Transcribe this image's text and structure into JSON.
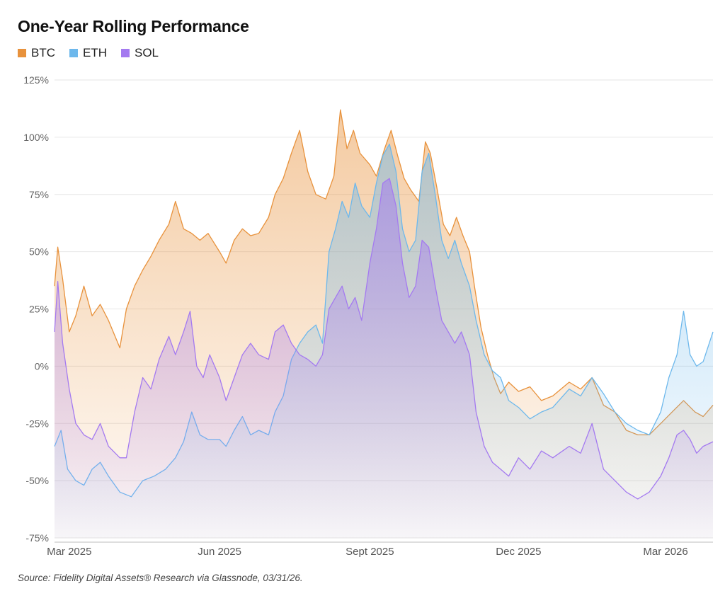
{
  "chart_data": {
    "type": "area",
    "title": "One-Year Rolling Performance",
    "xlabel": "",
    "ylabel": "",
    "ylim": [
      -75,
      125
    ],
    "y_ticks": [
      125,
      100,
      75,
      50,
      25,
      0,
      -25,
      -50,
      -75
    ],
    "y_tick_labels": [
      "125%",
      "100%",
      "75%",
      "50%",
      "25%",
      "0%",
      "-25%",
      "-50%",
      "-75%"
    ],
    "x_range": [
      "2025-02-20",
      "2026-03-30"
    ],
    "x_ticks": [
      {
        "date": "2025-03-01",
        "label": "Mar 2025"
      },
      {
        "date": "2025-06-01",
        "label": "Jun 2025"
      },
      {
        "date": "2025-09-01",
        "label": "Sept 2025"
      },
      {
        "date": "2025-12-01",
        "label": "Dec 2025"
      },
      {
        "date": "2026-03-01",
        "label": "Mar 2026"
      }
    ],
    "grid": true,
    "legend_position": "top-left",
    "series": [
      {
        "name": "BTC",
        "color": "#E8923C",
        "points": [
          [
            "2025-02-20",
            35
          ],
          [
            "2025-02-22",
            52
          ],
          [
            "2025-02-25",
            38
          ],
          [
            "2025-03-01",
            15
          ],
          [
            "2025-03-05",
            22
          ],
          [
            "2025-03-10",
            35
          ],
          [
            "2025-03-15",
            22
          ],
          [
            "2025-03-20",
            27
          ],
          [
            "2025-03-25",
            20
          ],
          [
            "2025-04-01",
            8
          ],
          [
            "2025-04-05",
            25
          ],
          [
            "2025-04-10",
            35
          ],
          [
            "2025-04-15",
            42
          ],
          [
            "2025-04-20",
            48
          ],
          [
            "2025-04-25",
            55
          ],
          [
            "2025-05-01",
            62
          ],
          [
            "2025-05-05",
            72
          ],
          [
            "2025-05-10",
            60
          ],
          [
            "2025-05-15",
            58
          ],
          [
            "2025-05-20",
            55
          ],
          [
            "2025-05-25",
            58
          ],
          [
            "2025-06-01",
            50
          ],
          [
            "2025-06-05",
            45
          ],
          [
            "2025-06-10",
            55
          ],
          [
            "2025-06-15",
            60
          ],
          [
            "2025-06-20",
            57
          ],
          [
            "2025-06-25",
            58
          ],
          [
            "2025-07-01",
            65
          ],
          [
            "2025-07-05",
            75
          ],
          [
            "2025-07-10",
            82
          ],
          [
            "2025-07-15",
            93
          ],
          [
            "2025-07-20",
            103
          ],
          [
            "2025-07-25",
            85
          ],
          [
            "2025-07-30",
            75
          ],
          [
            "2025-08-05",
            73
          ],
          [
            "2025-08-10",
            83
          ],
          [
            "2025-08-14",
            112
          ],
          [
            "2025-08-18",
            95
          ],
          [
            "2025-08-22",
            103
          ],
          [
            "2025-08-26",
            93
          ],
          [
            "2025-09-01",
            88
          ],
          [
            "2025-09-05",
            83
          ],
          [
            "2025-09-10",
            95
          ],
          [
            "2025-09-14",
            103
          ],
          [
            "2025-09-18",
            92
          ],
          [
            "2025-09-22",
            82
          ],
          [
            "2025-09-26",
            77
          ],
          [
            "2025-10-01",
            72
          ],
          [
            "2025-10-05",
            98
          ],
          [
            "2025-10-08",
            93
          ],
          [
            "2025-10-12",
            78
          ],
          [
            "2025-10-16",
            62
          ],
          [
            "2025-10-20",
            57
          ],
          [
            "2025-10-24",
            65
          ],
          [
            "2025-10-28",
            57
          ],
          [
            "2025-11-01",
            50
          ],
          [
            "2025-11-04",
            35
          ],
          [
            "2025-11-08",
            17
          ],
          [
            "2025-11-12",
            5
          ],
          [
            "2025-11-16",
            -5
          ],
          [
            "2025-11-20",
            -12
          ],
          [
            "2025-11-25",
            -7
          ],
          [
            "2025-12-01",
            -11
          ],
          [
            "2025-12-08",
            -9
          ],
          [
            "2025-12-15",
            -15
          ],
          [
            "2025-12-22",
            -13
          ],
          [
            "2026-01-01",
            -7
          ],
          [
            "2026-01-08",
            -10
          ],
          [
            "2026-01-15",
            -5
          ],
          [
            "2026-01-22",
            -17
          ],
          [
            "2026-01-29",
            -20
          ],
          [
            "2026-02-05",
            -28
          ],
          [
            "2026-02-12",
            -30
          ],
          [
            "2026-02-19",
            -30
          ],
          [
            "2026-02-26",
            -25
          ],
          [
            "2026-03-05",
            -20
          ],
          [
            "2026-03-12",
            -15
          ],
          [
            "2026-03-19",
            -20
          ],
          [
            "2026-03-24",
            -22
          ],
          [
            "2026-03-30",
            -17
          ]
        ]
      },
      {
        "name": "ETH",
        "color": "#6DB8EC",
        "points": [
          [
            "2025-02-20",
            -35
          ],
          [
            "2025-02-24",
            -28
          ],
          [
            "2025-02-28",
            -45
          ],
          [
            "2025-03-05",
            -50
          ],
          [
            "2025-03-10",
            -52
          ],
          [
            "2025-03-15",
            -45
          ],
          [
            "2025-03-20",
            -42
          ],
          [
            "2025-03-25",
            -48
          ],
          [
            "2025-04-01",
            -55
          ],
          [
            "2025-04-08",
            -57
          ],
          [
            "2025-04-15",
            -50
          ],
          [
            "2025-04-22",
            -48
          ],
          [
            "2025-04-29",
            -45
          ],
          [
            "2025-05-05",
            -40
          ],
          [
            "2025-05-10",
            -33
          ],
          [
            "2025-05-15",
            -20
          ],
          [
            "2025-05-20",
            -30
          ],
          [
            "2025-05-25",
            -32
          ],
          [
            "2025-06-01",
            -32
          ],
          [
            "2025-06-05",
            -35
          ],
          [
            "2025-06-10",
            -28
          ],
          [
            "2025-06-15",
            -22
          ],
          [
            "2025-06-20",
            -30
          ],
          [
            "2025-06-25",
            -28
          ],
          [
            "2025-07-01",
            -30
          ],
          [
            "2025-07-05",
            -20
          ],
          [
            "2025-07-10",
            -13
          ],
          [
            "2025-07-15",
            3
          ],
          [
            "2025-07-20",
            10
          ],
          [
            "2025-07-25",
            15
          ],
          [
            "2025-07-30",
            18
          ],
          [
            "2025-08-03",
            10
          ],
          [
            "2025-08-07",
            50
          ],
          [
            "2025-08-11",
            60
          ],
          [
            "2025-08-15",
            72
          ],
          [
            "2025-08-19",
            65
          ],
          [
            "2025-08-23",
            80
          ],
          [
            "2025-08-27",
            70
          ],
          [
            "2025-09-01",
            65
          ],
          [
            "2025-09-05",
            80
          ],
          [
            "2025-09-09",
            92
          ],
          [
            "2025-09-13",
            97
          ],
          [
            "2025-09-17",
            85
          ],
          [
            "2025-09-21",
            60
          ],
          [
            "2025-09-25",
            50
          ],
          [
            "2025-09-29",
            55
          ],
          [
            "2025-10-03",
            85
          ],
          [
            "2025-10-07",
            93
          ],
          [
            "2025-10-11",
            75
          ],
          [
            "2025-10-15",
            55
          ],
          [
            "2025-10-19",
            47
          ],
          [
            "2025-10-23",
            55
          ],
          [
            "2025-10-27",
            45
          ],
          [
            "2025-11-01",
            35
          ],
          [
            "2025-11-05",
            20
          ],
          [
            "2025-11-10",
            5
          ],
          [
            "2025-11-15",
            -2
          ],
          [
            "2025-11-20",
            -5
          ],
          [
            "2025-11-25",
            -15
          ],
          [
            "2025-12-01",
            -18
          ],
          [
            "2025-12-08",
            -23
          ],
          [
            "2025-12-15",
            -20
          ],
          [
            "2025-12-22",
            -18
          ],
          [
            "2026-01-01",
            -10
          ],
          [
            "2026-01-08",
            -13
          ],
          [
            "2026-01-15",
            -5
          ],
          [
            "2026-01-22",
            -12
          ],
          [
            "2026-01-29",
            -20
          ],
          [
            "2026-02-05",
            -25
          ],
          [
            "2026-02-12",
            -28
          ],
          [
            "2026-02-19",
            -30
          ],
          [
            "2026-02-26",
            -20
          ],
          [
            "2026-03-03",
            -5
          ],
          [
            "2026-03-08",
            5
          ],
          [
            "2026-03-12",
            24
          ],
          [
            "2026-03-16",
            5
          ],
          [
            "2026-03-20",
            0
          ],
          [
            "2026-03-24",
            2
          ],
          [
            "2026-03-30",
            15
          ]
        ]
      },
      {
        "name": "SOL",
        "color": "#A47AF0",
        "points": [
          [
            "2025-02-20",
            15
          ],
          [
            "2025-02-22",
            37
          ],
          [
            "2025-02-25",
            10
          ],
          [
            "2025-03-01",
            -10
          ],
          [
            "2025-03-05",
            -25
          ],
          [
            "2025-03-10",
            -30
          ],
          [
            "2025-03-15",
            -32
          ],
          [
            "2025-03-20",
            -25
          ],
          [
            "2025-03-25",
            -35
          ],
          [
            "2025-04-01",
            -40
          ],
          [
            "2025-04-05",
            -40
          ],
          [
            "2025-04-10",
            -20
          ],
          [
            "2025-04-15",
            -5
          ],
          [
            "2025-04-20",
            -10
          ],
          [
            "2025-04-25",
            3
          ],
          [
            "2025-05-01",
            13
          ],
          [
            "2025-05-05",
            5
          ],
          [
            "2025-05-10",
            15
          ],
          [
            "2025-05-14",
            24
          ],
          [
            "2025-05-18",
            0
          ],
          [
            "2025-05-22",
            -5
          ],
          [
            "2025-05-26",
            5
          ],
          [
            "2025-06-01",
            -5
          ],
          [
            "2025-06-05",
            -15
          ],
          [
            "2025-06-10",
            -5
          ],
          [
            "2025-06-15",
            5
          ],
          [
            "2025-06-20",
            10
          ],
          [
            "2025-06-25",
            5
          ],
          [
            "2025-07-01",
            3
          ],
          [
            "2025-07-05",
            15
          ],
          [
            "2025-07-10",
            18
          ],
          [
            "2025-07-15",
            10
          ],
          [
            "2025-07-20",
            5
          ],
          [
            "2025-07-25",
            3
          ],
          [
            "2025-07-30",
            0
          ],
          [
            "2025-08-03",
            5
          ],
          [
            "2025-08-07",
            25
          ],
          [
            "2025-08-11",
            30
          ],
          [
            "2025-08-15",
            35
          ],
          [
            "2025-08-19",
            25
          ],
          [
            "2025-08-23",
            30
          ],
          [
            "2025-08-27",
            20
          ],
          [
            "2025-09-01",
            45
          ],
          [
            "2025-09-05",
            60
          ],
          [
            "2025-09-09",
            80
          ],
          [
            "2025-09-13",
            82
          ],
          [
            "2025-09-17",
            70
          ],
          [
            "2025-09-21",
            45
          ],
          [
            "2025-09-25",
            30
          ],
          [
            "2025-09-29",
            35
          ],
          [
            "2025-10-03",
            55
          ],
          [
            "2025-10-07",
            52
          ],
          [
            "2025-10-11",
            35
          ],
          [
            "2025-10-15",
            20
          ],
          [
            "2025-10-19",
            15
          ],
          [
            "2025-10-23",
            10
          ],
          [
            "2025-10-27",
            15
          ],
          [
            "2025-11-01",
            5
          ],
          [
            "2025-11-05",
            -20
          ],
          [
            "2025-11-10",
            -35
          ],
          [
            "2025-11-15",
            -42
          ],
          [
            "2025-11-20",
            -45
          ],
          [
            "2025-11-25",
            -48
          ],
          [
            "2025-12-01",
            -40
          ],
          [
            "2025-12-08",
            -45
          ],
          [
            "2025-12-15",
            -37
          ],
          [
            "2025-12-22",
            -40
          ],
          [
            "2026-01-01",
            -35
          ],
          [
            "2026-01-08",
            -38
          ],
          [
            "2026-01-15",
            -25
          ],
          [
            "2026-01-22",
            -45
          ],
          [
            "2026-01-29",
            -50
          ],
          [
            "2026-02-05",
            -55
          ],
          [
            "2026-02-12",
            -58
          ],
          [
            "2026-02-19",
            -55
          ],
          [
            "2026-02-26",
            -48
          ],
          [
            "2026-03-03",
            -40
          ],
          [
            "2026-03-08",
            -30
          ],
          [
            "2026-03-12",
            -28
          ],
          [
            "2026-03-16",
            -32
          ],
          [
            "2026-03-20",
            -38
          ],
          [
            "2026-03-24",
            -35
          ],
          [
            "2026-03-30",
            -33
          ]
        ]
      }
    ]
  },
  "source": "Source: Fidelity Digital Assets® Research via Glassnode, 03/31/26."
}
